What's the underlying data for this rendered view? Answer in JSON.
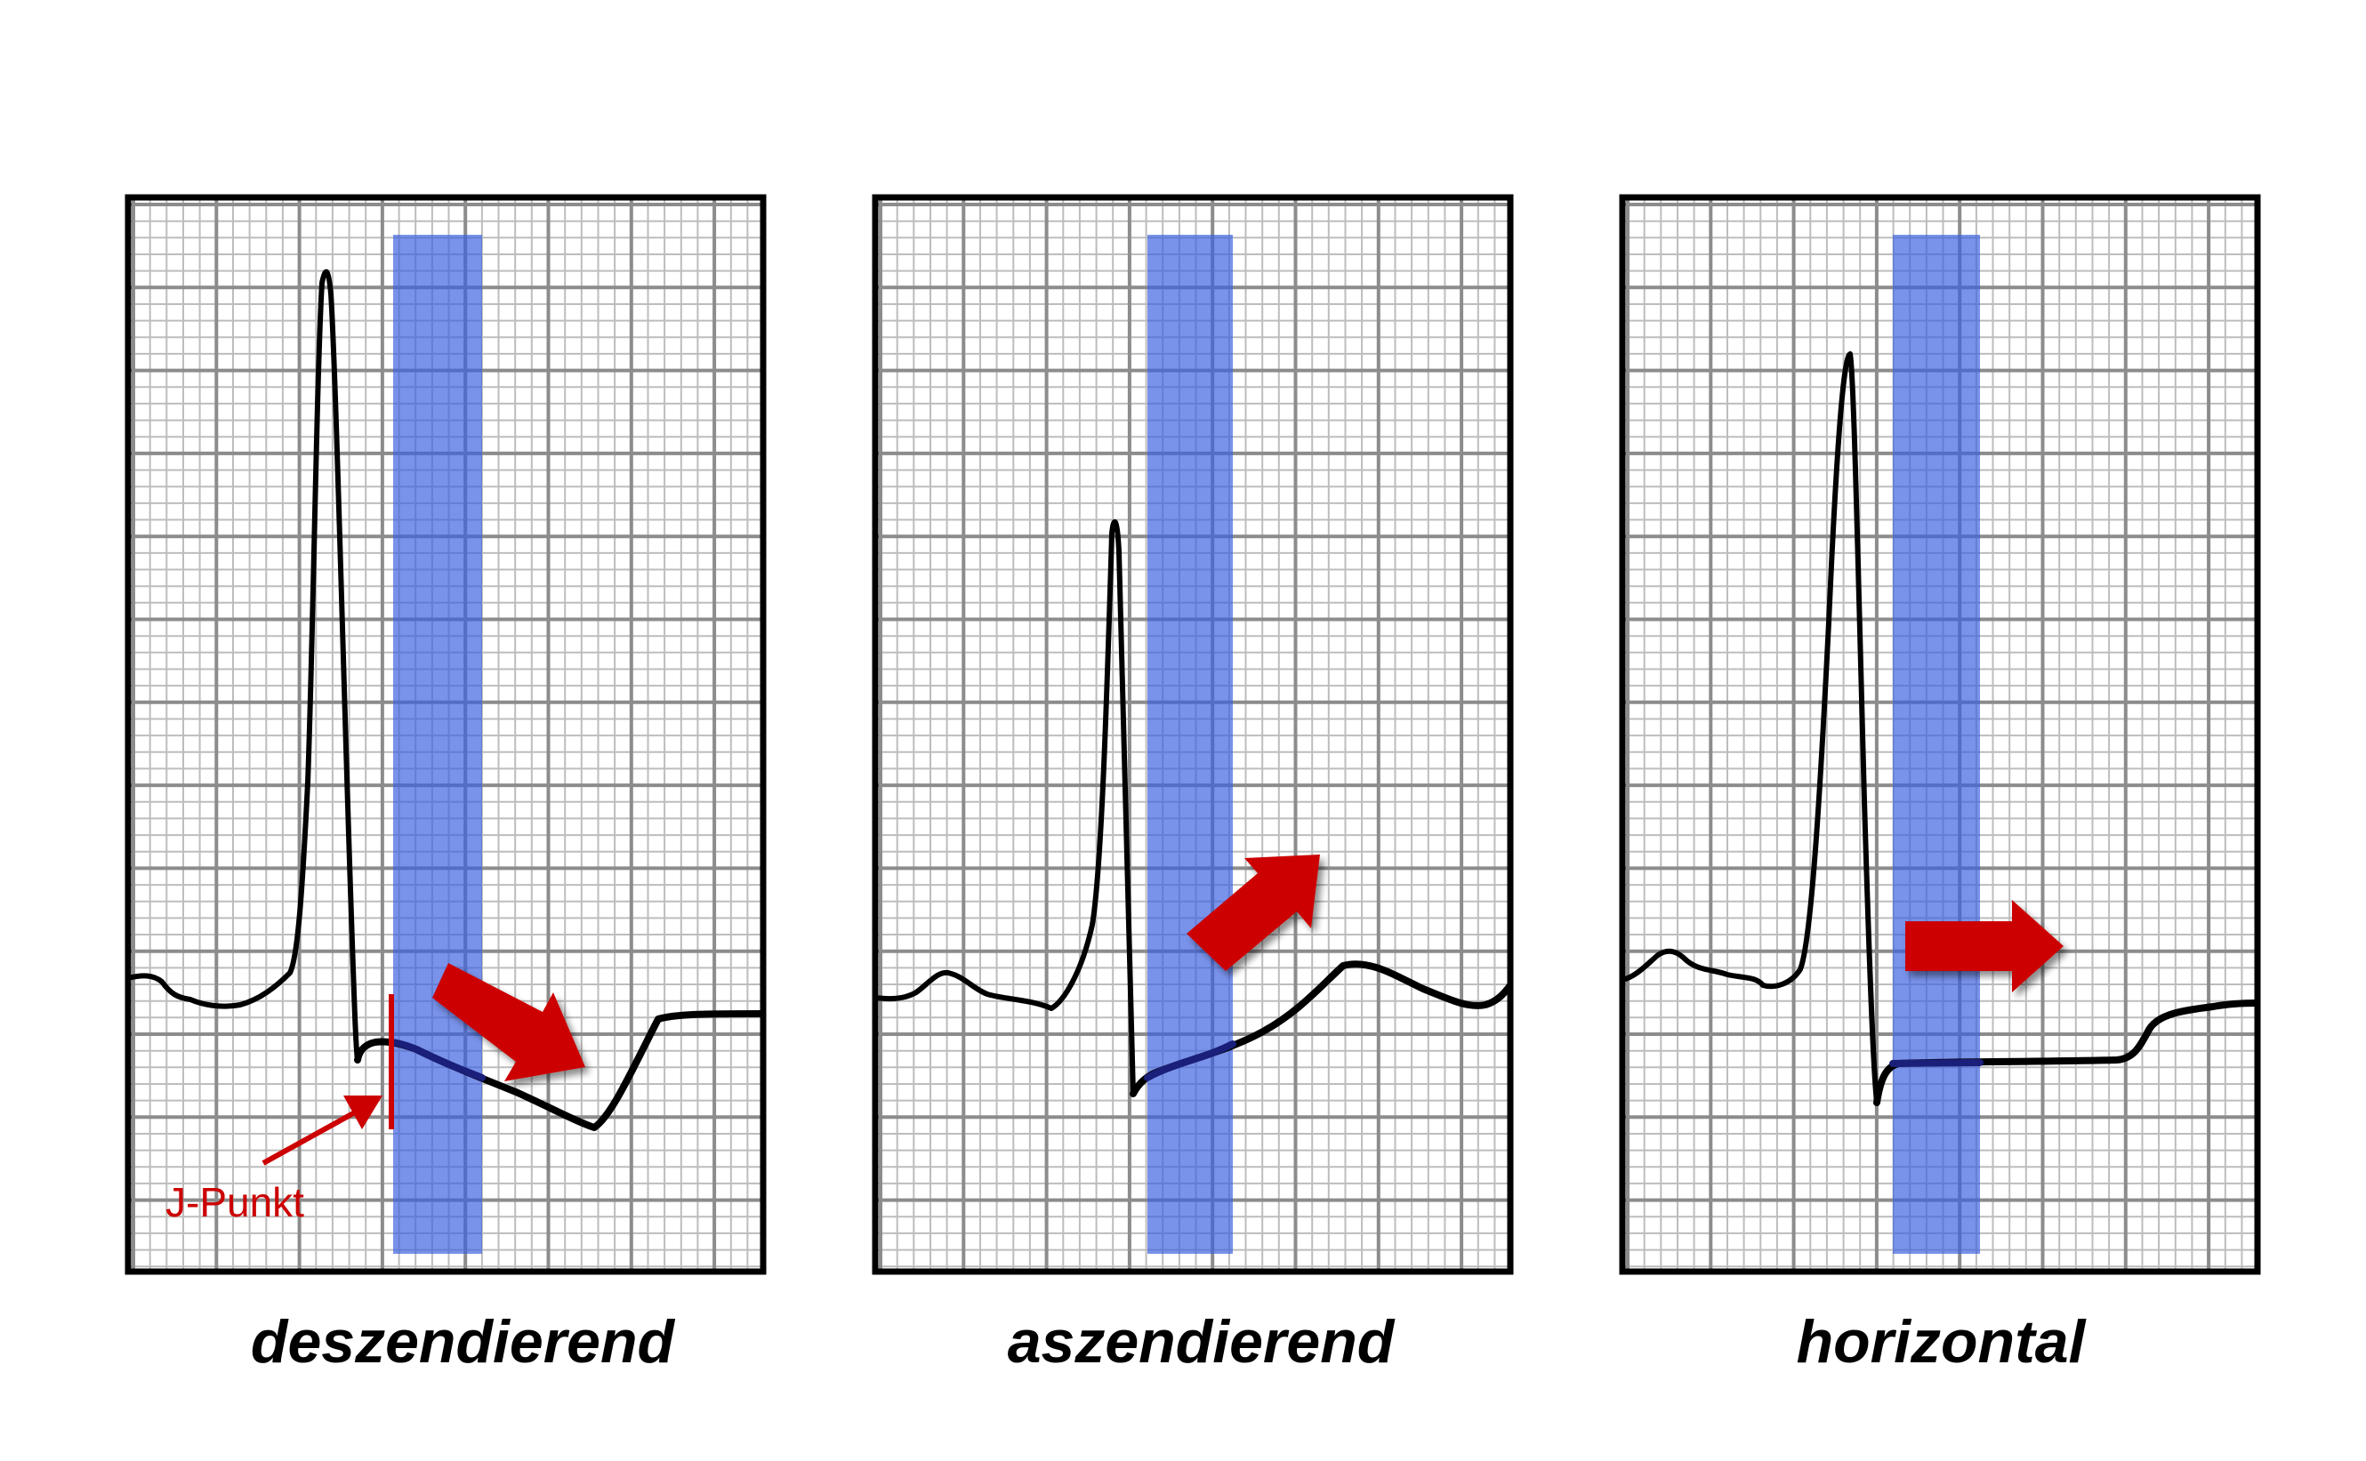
{
  "colors": {
    "background": "#ffffff",
    "grid_minor": "#bdbdbd",
    "grid_major": "#8c8c8c",
    "frame": "#000000",
    "trace": "#000000",
    "st_segment_highlight": "#1a1f7a",
    "window_band": "#3a5fe0",
    "arrow": "#cc0000",
    "annotation": "#cc0000"
  },
  "panels": [
    {
      "id": "descending",
      "caption": "deszendierend",
      "trend": "descending",
      "annotation": {
        "label": "J-Punkt",
        "marks": "j-point"
      }
    },
    {
      "id": "ascending",
      "caption": "aszendierend",
      "trend": "ascending"
    },
    {
      "id": "horizontal",
      "caption": "horizontal",
      "trend": "horizontal"
    }
  ]
}
